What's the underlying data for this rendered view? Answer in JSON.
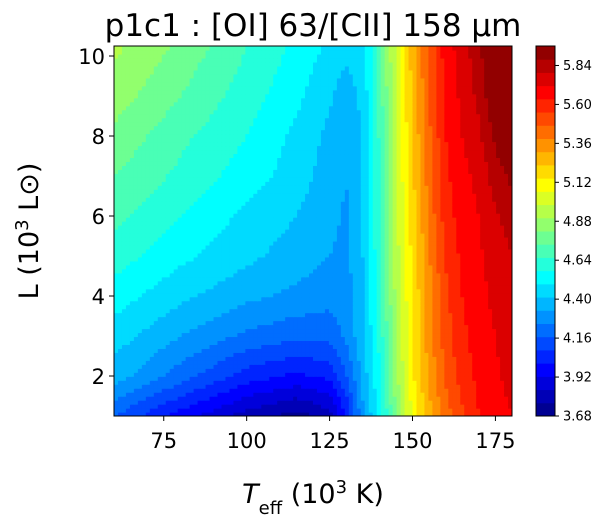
{
  "chart_data": {
    "type": "heatmap",
    "subtype": "filled contour",
    "title": "p1c1 : [OI] 63/[CII] 158 μm",
    "xlabel": "T_eff (10^3 K)",
    "ylabel": "L (10^3 L⊙)",
    "xlim": [
      60,
      180
    ],
    "ylim": [
      1.0,
      10.25
    ],
    "x_ticks": [
      75,
      100,
      125,
      150,
      175
    ],
    "y_ticks": [
      2,
      4,
      6,
      8,
      10
    ],
    "colormap": "jet",
    "colorbar": {
      "vmin": 3.68,
      "vmax": 5.96,
      "tick_values": [
        3.68,
        3.92,
        4.16,
        4.4,
        4.64,
        4.88,
        5.12,
        5.36,
        5.6,
        5.84
      ],
      "tick_labels": [
        "3.68",
        "3.92",
        "4.16",
        "4.40",
        "4.64",
        "4.88",
        "5.12",
        "5.36",
        "5.60",
        "5.84"
      ],
      "level_step": 0.08
    },
    "x_samples": [
      60,
      80,
      100,
      115,
      125,
      130,
      135,
      140,
      145,
      150,
      155,
      160,
      165,
      170,
      175,
      180
    ],
    "y_samples": [
      1.0,
      2.0,
      3.0,
      4.0,
      5.0,
      6.0,
      7.0,
      8.0,
      9.0,
      10.25
    ],
    "z": [
      [
        4.16,
        3.96,
        3.8,
        3.72,
        3.8,
        4.0,
        4.3,
        4.5,
        4.8,
        5.05,
        5.25,
        5.4,
        5.5,
        5.6,
        5.65,
        5.68
      ],
      [
        4.36,
        4.2,
        4.04,
        3.98,
        4.02,
        4.15,
        4.35,
        4.55,
        4.85,
        5.1,
        5.3,
        5.45,
        5.56,
        5.62,
        5.67,
        5.7
      ],
      [
        4.44,
        4.32,
        4.22,
        4.18,
        4.18,
        4.26,
        4.38,
        4.58,
        4.88,
        5.12,
        5.32,
        5.48,
        5.58,
        5.64,
        5.68,
        5.72
      ],
      [
        4.52,
        4.42,
        4.34,
        4.3,
        4.27,
        4.28,
        4.39,
        4.6,
        4.9,
        5.12,
        5.33,
        5.5,
        5.6,
        5.66,
        5.7,
        5.74
      ],
      [
        4.6,
        4.5,
        4.42,
        4.36,
        4.32,
        4.3,
        4.4,
        4.62,
        4.92,
        5.14,
        5.35,
        5.53,
        5.62,
        5.67,
        5.7,
        5.76
      ],
      [
        4.66,
        4.56,
        4.46,
        4.4,
        4.34,
        4.31,
        4.4,
        4.63,
        4.94,
        5.16,
        5.38,
        5.56,
        5.64,
        5.68,
        5.75,
        5.8
      ],
      [
        4.72,
        4.62,
        4.52,
        4.44,
        4.36,
        4.32,
        4.4,
        4.64,
        4.95,
        5.18,
        5.4,
        5.58,
        5.66,
        5.7,
        5.8,
        5.86
      ],
      [
        4.78,
        4.66,
        4.56,
        4.46,
        4.38,
        4.33,
        4.41,
        4.65,
        4.96,
        5.2,
        5.42,
        5.6,
        5.68,
        5.74,
        5.86,
        5.92
      ],
      [
        4.84,
        4.72,
        4.6,
        4.5,
        4.41,
        4.36,
        4.42,
        4.66,
        4.97,
        5.22,
        5.44,
        5.62,
        5.7,
        5.78,
        5.92,
        5.96
      ],
      [
        4.9,
        4.78,
        4.64,
        4.54,
        4.46,
        4.42,
        4.45,
        4.68,
        4.98,
        5.24,
        5.46,
        5.64,
        5.72,
        5.82,
        5.96,
        5.96
      ]
    ]
  }
}
